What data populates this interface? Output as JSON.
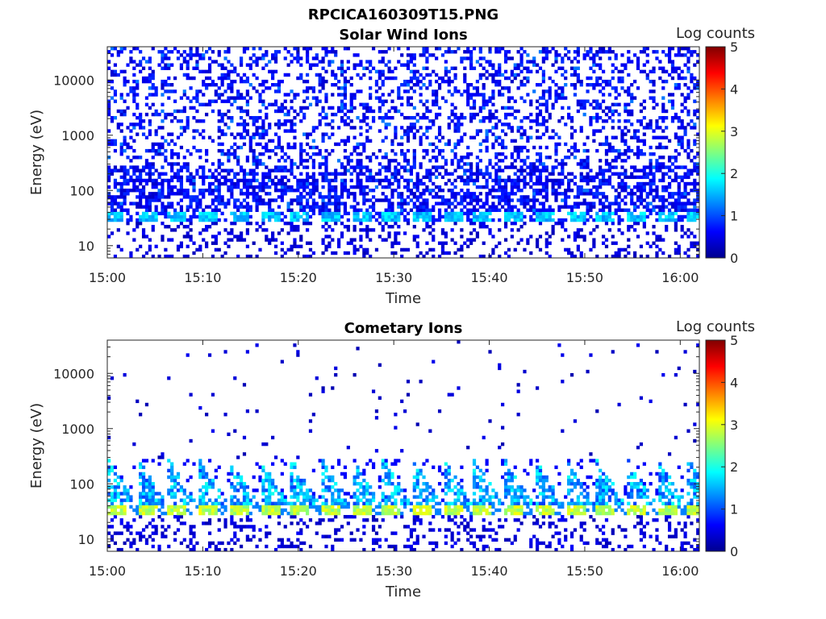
{
  "figure": {
    "title": "RPCICA160309T15.PNG"
  },
  "colors": {
    "low": "#00008f",
    "mid1": "#0050ff",
    "mid2": "#00dfff",
    "mid3": "#8fff70",
    "mid4": "#ffdf00",
    "high1": "#ff5000",
    "high2": "#800000"
  },
  "chart_data": [
    {
      "type": "heatmap",
      "title": "Solar Wind Ions",
      "xlabel": "Time",
      "ylabel": "Energy (eV)",
      "y_scale": "log",
      "xlim": [
        "15:00",
        "16:02"
      ],
      "ylim": [
        6,
        40000
      ],
      "x_ticks": [
        "15:00",
        "15:10",
        "15:20",
        "15:30",
        "15:40",
        "15:50",
        "16:00"
      ],
      "y_ticks": [
        {
          "value": 10,
          "label": "10"
        },
        {
          "value": 100,
          "label": "100"
        },
        {
          "value": 1000,
          "label": "1000"
        },
        {
          "value": 10000,
          "label": "10000"
        }
      ],
      "colorbar": {
        "label": "Log counts",
        "range": [
          0,
          5
        ],
        "ticks": [
          "0",
          "1",
          "2",
          "3",
          "4",
          "5"
        ]
      },
      "features": {
        "band_energy_ev": [
          28,
          40
        ],
        "band_log_counts": 1.6,
        "band_period_min": 3.2,
        "background_log_counts": 0.5,
        "background_energy_ev": [
          10,
          40000
        ]
      }
    },
    {
      "type": "heatmap",
      "title": "Cometary Ions",
      "xlabel": "Time",
      "ylabel": "Energy (eV)",
      "y_scale": "log",
      "xlim": [
        "15:00",
        "16:02"
      ],
      "ylim": [
        6,
        40000
      ],
      "x_ticks": [
        "15:00",
        "15:10",
        "15:20",
        "15:30",
        "15:40",
        "15:50",
        "16:00"
      ],
      "y_ticks": [
        {
          "value": 10,
          "label": "10"
        },
        {
          "value": 100,
          "label": "100"
        },
        {
          "value": 1000,
          "label": "1000"
        },
        {
          "value": 10000,
          "label": "10000"
        }
      ],
      "colorbar": {
        "label": "Log counts",
        "range": [
          0,
          5
        ],
        "ticks": [
          "0",
          "1",
          "2",
          "3",
          "4",
          "5"
        ]
      },
      "features": {
        "band_energy_ev": [
          28,
          40
        ],
        "band_log_counts": 2.8,
        "band_period_min": 3.2,
        "arc_energy_ev": [
          40,
          300
        ],
        "arc_log_counts": 1.8,
        "background_log_counts": 0.3,
        "background_energy_ev": [
          300,
          40000
        ]
      }
    }
  ]
}
